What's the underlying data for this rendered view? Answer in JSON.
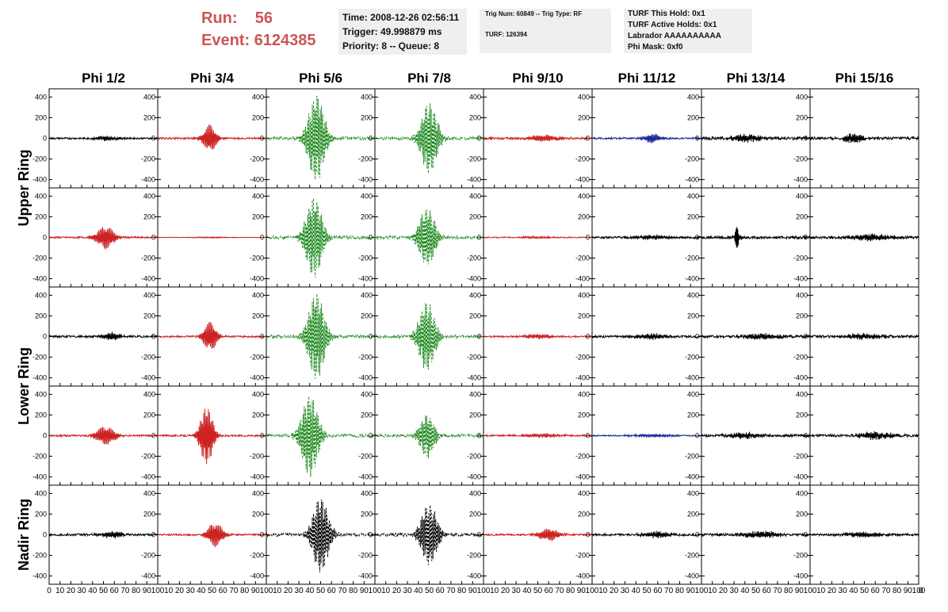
{
  "header": {
    "run_line": "Run:    56",
    "event_line": "Event: 6124385",
    "time_line": "Time: 2008-12-26 02:56:11",
    "trigger_line": "Trigger: 49.998879 ms",
    "priority_line": "Priority: 8 -- Queue: 8",
    "trig_num_line": "Trig Num: 60849 -- Trig Type: RF",
    "turf_line": "TURF: 126394",
    "turf_hold_line": "TURF This Hold: 0x1",
    "turf_active_line": "TURF Active Holds: 0x1",
    "labrador_line": "Labrador AAAAAAAAAA",
    "phi_mask_line": "Phi Mask: 0xf0"
  },
  "colors": {
    "black": "#000000",
    "red": "#cc2222",
    "green": "#1f8a1f",
    "blue": "#1a2a9a",
    "run_text": "#cc5555",
    "box_bg": "#efefef"
  },
  "chart_data": {
    "type": "line",
    "columns": [
      "Phi 1/2",
      "Phi 3/4",
      "Phi 5/6",
      "Phi 7/8",
      "Phi 9/10",
      "Phi 11/12",
      "Phi 13/14",
      "Phi 15/16"
    ],
    "rows": [
      "Upper Ring",
      "Upper Ring",
      "Lower Ring",
      "Lower Ring",
      "Nadir Ring"
    ],
    "row_labels": [
      "Upper Ring",
      "Lower Ring",
      "Nadir Ring"
    ],
    "xlim": [
      0,
      100
    ],
    "ylim": [
      -480,
      480
    ],
    "y_ticks": [
      400,
      200,
      0,
      -200,
      -400
    ],
    "x_ticks": [
      0,
      10,
      20,
      30,
      40,
      50,
      60,
      70,
      80,
      90,
      100
    ],
    "grid": false,
    "panels": [
      [
        {
          "color": "black",
          "dash": false,
          "peak": 20,
          "center": 52,
          "width": 12,
          "freq": 0.9,
          "noise": 8
        },
        {
          "color": "red",
          "dash": false,
          "peak": 130,
          "center": 48,
          "width": 7,
          "freq": 0.9,
          "noise": 8
        },
        {
          "color": "green",
          "dash": true,
          "peak": 420,
          "center": 46,
          "width": 9,
          "freq": 0.95,
          "noise": 15
        },
        {
          "color": "green",
          "dash": true,
          "peak": 340,
          "center": 50,
          "width": 9,
          "freq": 0.95,
          "noise": 15
        },
        {
          "color": "red",
          "dash": false,
          "peak": 30,
          "center": 55,
          "width": 15,
          "freq": 0.9,
          "noise": 10
        },
        {
          "color": "blue",
          "dash": false,
          "peak": 45,
          "center": 55,
          "width": 8,
          "freq": 0.9,
          "noise": 8
        },
        {
          "color": "black",
          "dash": false,
          "peak": 35,
          "center": 40,
          "width": 15,
          "freq": 1.0,
          "noise": 14
        },
        {
          "color": "black",
          "dash": false,
          "peak": 50,
          "center": 40,
          "width": 9,
          "freq": 1.0,
          "noise": 14
        }
      ],
      [
        {
          "color": "red",
          "dash": false,
          "peak": 110,
          "center": 52,
          "width": 9,
          "freq": 0.9,
          "noise": 8
        },
        {
          "color": "red",
          "dash": false,
          "peak": 5,
          "center": 50,
          "width": 20,
          "freq": 0.9,
          "noise": 2
        },
        {
          "color": "green",
          "dash": true,
          "peak": 390,
          "center": 44,
          "width": 9,
          "freq": 0.95,
          "noise": 15
        },
        {
          "color": "green",
          "dash": true,
          "peak": 280,
          "center": 48,
          "width": 9,
          "freq": 0.95,
          "noise": 15
        },
        {
          "color": "red",
          "dash": false,
          "peak": 8,
          "center": 50,
          "width": 20,
          "freq": 0.9,
          "noise": 4
        },
        {
          "color": "black",
          "dash": false,
          "peak": 22,
          "center": 55,
          "width": 15,
          "freq": 1.0,
          "noise": 10
        },
        {
          "color": "black",
          "dash": false,
          "peak": 110,
          "center": 33,
          "width": 3,
          "freq": 1.2,
          "noise": 12
        },
        {
          "color": "black",
          "dash": false,
          "peak": 30,
          "center": 55,
          "width": 20,
          "freq": 1.0,
          "noise": 12
        }
      ],
      [
        {
          "color": "black",
          "dash": false,
          "peak": 35,
          "center": 58,
          "width": 10,
          "freq": 0.9,
          "noise": 10
        },
        {
          "color": "red",
          "dash": false,
          "peak": 140,
          "center": 48,
          "width": 7,
          "freq": 0.9,
          "noise": 8
        },
        {
          "color": "green",
          "dash": true,
          "peak": 420,
          "center": 46,
          "width": 9,
          "freq": 0.95,
          "noise": 15
        },
        {
          "color": "green",
          "dash": true,
          "peak": 330,
          "center": 48,
          "width": 9,
          "freq": 0.95,
          "noise": 15
        },
        {
          "color": "red",
          "dash": false,
          "peak": 20,
          "center": 50,
          "width": 15,
          "freq": 0.9,
          "noise": 8
        },
        {
          "color": "black",
          "dash": false,
          "peak": 25,
          "center": 55,
          "width": 15,
          "freq": 1.0,
          "noise": 10
        },
        {
          "color": "black",
          "dash": false,
          "peak": 28,
          "center": 55,
          "width": 18,
          "freq": 1.0,
          "noise": 12
        },
        {
          "color": "black",
          "dash": false,
          "peak": 25,
          "center": 50,
          "width": 20,
          "freq": 1.0,
          "noise": 12
        }
      ],
      [
        {
          "color": "red",
          "dash": false,
          "peak": 90,
          "center": 52,
          "width": 10,
          "freq": 0.9,
          "noise": 8
        },
        {
          "color": "red",
          "dash": false,
          "peak": 280,
          "center": 45,
          "width": 7,
          "freq": 0.95,
          "noise": 8
        },
        {
          "color": "green",
          "dash": true,
          "peak": 400,
          "center": 40,
          "width": 9,
          "freq": 0.95,
          "noise": 15
        },
        {
          "color": "green",
          "dash": true,
          "peak": 210,
          "center": 48,
          "width": 8,
          "freq": 0.95,
          "noise": 15
        },
        {
          "color": "red",
          "dash": false,
          "peak": 15,
          "center": 55,
          "width": 20,
          "freq": 0.9,
          "noise": 8
        },
        {
          "color": "blue",
          "dash": false,
          "peak": 12,
          "center": 55,
          "width": 20,
          "freq": 0.9,
          "noise": 6
        },
        {
          "color": "black",
          "dash": false,
          "peak": 28,
          "center": 40,
          "width": 15,
          "freq": 1.0,
          "noise": 12
        },
        {
          "color": "black",
          "dash": false,
          "peak": 35,
          "center": 60,
          "width": 18,
          "freq": 1.0,
          "noise": 12
        }
      ],
      [
        {
          "color": "black",
          "dash": false,
          "peak": 30,
          "center": 58,
          "width": 12,
          "freq": 0.9,
          "noise": 10
        },
        {
          "color": "red",
          "dash": false,
          "peak": 120,
          "center": 53,
          "width": 8,
          "freq": 0.9,
          "noise": 8
        },
        {
          "color": "black",
          "dash": true,
          "peak": 360,
          "center": 50,
          "width": 9,
          "freq": 0.95,
          "noise": 15
        },
        {
          "color": "black",
          "dash": true,
          "peak": 300,
          "center": 50,
          "width": 9,
          "freq": 0.95,
          "noise": 15
        },
        {
          "color": "red",
          "dash": false,
          "peak": 60,
          "center": 60,
          "width": 10,
          "freq": 0.9,
          "noise": 8
        },
        {
          "color": "black",
          "dash": false,
          "peak": 28,
          "center": 60,
          "width": 15,
          "freq": 1.0,
          "noise": 10
        },
        {
          "color": "black",
          "dash": false,
          "peak": 30,
          "center": 55,
          "width": 18,
          "freq": 1.0,
          "noise": 12
        },
        {
          "color": "black",
          "dash": false,
          "peak": 20,
          "center": 50,
          "width": 20,
          "freq": 1.0,
          "noise": 10
        }
      ]
    ]
  }
}
